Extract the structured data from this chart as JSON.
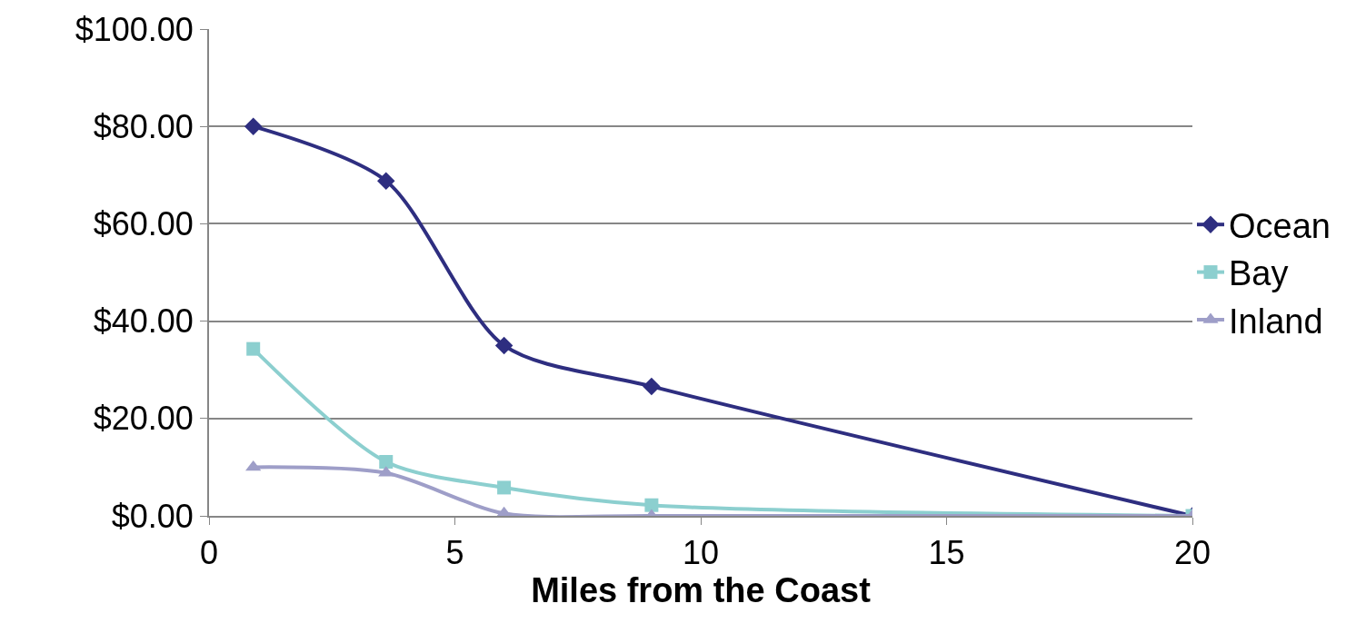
{
  "chart_data": {
    "type": "line",
    "xlabel": "Miles from the Coast",
    "x": [
      0.9,
      3.6,
      6,
      9,
      20
    ],
    "series": [
      {
        "name": "Ocean",
        "color": "#2e2e80",
        "marker": "diamond",
        "values": [
          80,
          68.8,
          35,
          26.6,
          0
        ]
      },
      {
        "name": "Bay",
        "color": "#8ccfcf",
        "marker": "square",
        "values": [
          34.3,
          11.1,
          5.8,
          2.2,
          0
        ]
      },
      {
        "name": "Inland",
        "color": "#9e9ec8",
        "marker": "triangle",
        "values": [
          10,
          8.8,
          0.5,
          0,
          0
        ]
      }
    ],
    "xlim": [
      0,
      20
    ],
    "xticks": [
      0,
      5,
      10,
      15,
      20
    ],
    "ylim": [
      0,
      100
    ],
    "yticks": [
      {
        "value": 0,
        "label": "$0.00"
      },
      {
        "value": 20,
        "label": "$20.00"
      },
      {
        "value": 40,
        "label": "$40.00"
      },
      {
        "value": 60,
        "label": "$60.00"
      },
      {
        "value": 80,
        "label": "$80.00"
      },
      {
        "value": 100,
        "label": "$100.00"
      }
    ],
    "grid": "y",
    "legend": "right"
  }
}
